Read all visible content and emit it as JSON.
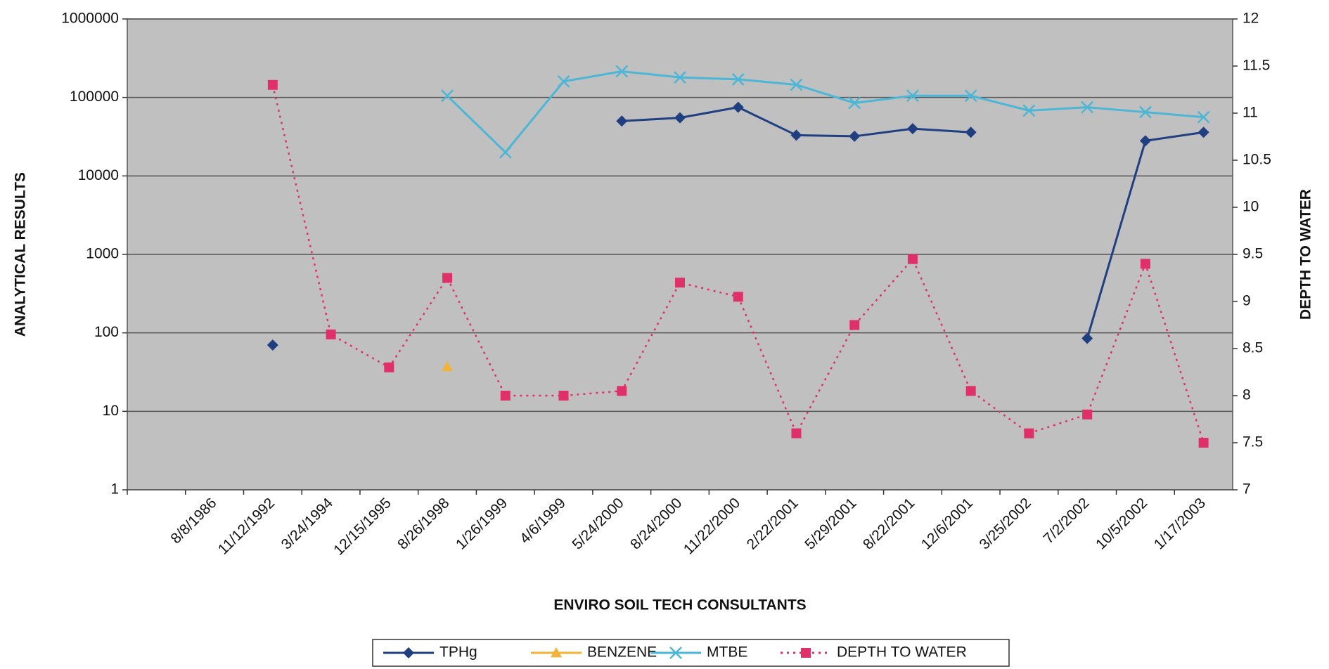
{
  "chart_data": {
    "type": "line",
    "x_label": "ENVIRO SOIL TECH CONSULTANTS",
    "y_label": "ANALYTICAL RESULTS",
    "y2_label": "DEPTH TO WATER",
    "categories": [
      null,
      "8/8/1986",
      "11/12/1992",
      "3/24/1994",
      "12/15/1995",
      "8/26/1998",
      "1/26/1999",
      "4/6/1999",
      "5/24/2000",
      "8/24/2000",
      "11/22/2000",
      "2/22/2001",
      "5/29/2001",
      "8/22/2001",
      "12/6/2001",
      "3/25/2002",
      "7/2/2002",
      "10/5/2002",
      "1/17/2003"
    ],
    "log_scale": true,
    "ylim": [
      1,
      1000000
    ],
    "yticks": [
      1,
      10,
      100,
      1000,
      10000,
      100000,
      1000000
    ],
    "y2lim": [
      7,
      12
    ],
    "y2ticks": [
      7,
      7.5,
      8,
      8.5,
      9,
      9.5,
      10,
      10.5,
      11,
      11.5,
      12
    ],
    "grid": true,
    "legend": "bottom",
    "series": [
      {
        "name": "TPHg",
        "color": "#1f3f80",
        "marker": "diamond",
        "dashed": false,
        "values": [
          null,
          null,
          70,
          null,
          null,
          null,
          null,
          null,
          50000,
          55000,
          75000,
          33000,
          32000,
          40000,
          36000,
          null,
          85,
          28000,
          36000
        ]
      },
      {
        "name": "BENZENE",
        "color": "#f2b33a",
        "marker": "triangle",
        "dashed": false,
        "values": [
          null,
          null,
          null,
          null,
          null,
          37,
          null,
          null,
          null,
          null,
          null,
          null,
          null,
          null,
          null,
          null,
          null,
          null,
          null
        ]
      },
      {
        "name": "MTBE",
        "color": "#4cb6d6",
        "marker": "cross",
        "dashed": false,
        "values": [
          null,
          null,
          null,
          null,
          null,
          105000,
          20000,
          160000,
          215000,
          180000,
          170000,
          145000,
          85000,
          105000,
          105000,
          68000,
          75000,
          65000,
          56000
        ]
      },
      {
        "name": "DEPTH TO WATER",
        "color": "#e0306a",
        "marker": "square",
        "dashed": true,
        "axis": "y2",
        "values": [
          null,
          null,
          11.3,
          8.65,
          8.3,
          9.25,
          8.0,
          8.0,
          8.05,
          9.2,
          9.05,
          7.6,
          8.75,
          9.45,
          8.05,
          7.6,
          7.8,
          9.4,
          7.5
        ]
      }
    ]
  }
}
